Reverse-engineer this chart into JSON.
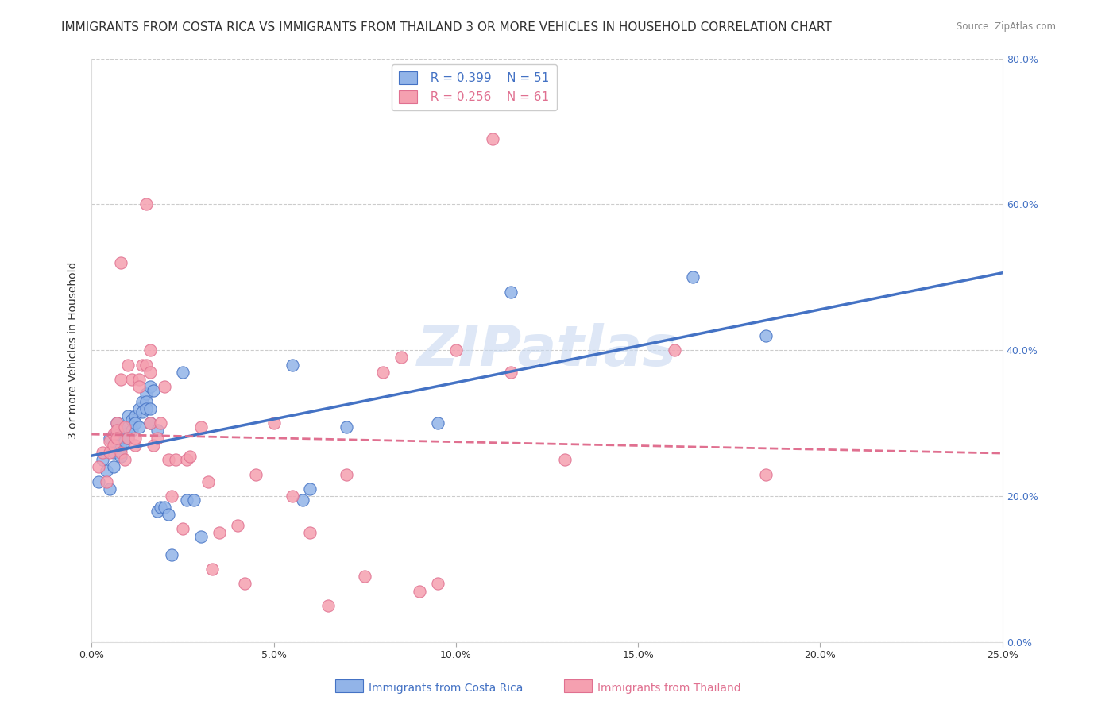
{
  "title": "IMMIGRANTS FROM COSTA RICA VS IMMIGRANTS FROM THAILAND 3 OR MORE VEHICLES IN HOUSEHOLD CORRELATION CHART",
  "source": "Source: ZipAtlas.com",
  "ylabel": "3 or more Vehicles in Household",
  "xlabel_ticks": [
    0.0,
    0.05,
    0.1,
    0.15,
    0.2,
    0.25
  ],
  "xlabel_labels": [
    "0.0%",
    "5.0%",
    "10.0%",
    "15.0%",
    "20.0%",
    "25.0%"
  ],
  "ylabel_ticks": [
    0.0,
    0.2,
    0.4,
    0.6,
    0.8
  ],
  "ylabel_labels": [
    "0.0%",
    "20.0%",
    "40.0%",
    "60.0%",
    "80.0%"
  ],
  "xlim": [
    0.0,
    0.25
  ],
  "ylim": [
    0.0,
    0.8
  ],
  "costa_rica_R": 0.399,
  "costa_rica_N": 51,
  "thailand_R": 0.256,
  "thailand_N": 61,
  "costa_rica_color": "#92b4e8",
  "thailand_color": "#f5a0b0",
  "costa_rica_line_color": "#4472c4",
  "thailand_line_color": "#e07090",
  "watermark": "ZIPatlas",
  "watermark_color": "#c8d8f0",
  "title_fontsize": 11,
  "axis_label_fontsize": 10,
  "tick_fontsize": 9,
  "legend_fontsize": 11,
  "costa_rica_x": [
    0.002,
    0.003,
    0.004,
    0.005,
    0.005,
    0.006,
    0.006,
    0.007,
    0.007,
    0.007,
    0.008,
    0.008,
    0.008,
    0.009,
    0.009,
    0.01,
    0.01,
    0.01,
    0.011,
    0.011,
    0.012,
    0.012,
    0.013,
    0.013,
    0.014,
    0.014,
    0.015,
    0.015,
    0.015,
    0.016,
    0.016,
    0.016,
    0.017,
    0.018,
    0.018,
    0.019,
    0.02,
    0.021,
    0.022,
    0.025,
    0.026,
    0.028,
    0.03,
    0.055,
    0.058,
    0.06,
    0.07,
    0.095,
    0.115,
    0.165,
    0.185
  ],
  "costa_rica_y": [
    0.22,
    0.25,
    0.235,
    0.28,
    0.21,
    0.26,
    0.24,
    0.3,
    0.285,
    0.27,
    0.29,
    0.265,
    0.255,
    0.285,
    0.275,
    0.31,
    0.295,
    0.28,
    0.305,
    0.29,
    0.31,
    0.3,
    0.32,
    0.295,
    0.33,
    0.315,
    0.34,
    0.33,
    0.32,
    0.3,
    0.32,
    0.35,
    0.345,
    0.29,
    0.18,
    0.185,
    0.185,
    0.175,
    0.12,
    0.37,
    0.195,
    0.195,
    0.145,
    0.38,
    0.195,
    0.21,
    0.295,
    0.3,
    0.48,
    0.5,
    0.42
  ],
  "thailand_x": [
    0.002,
    0.003,
    0.004,
    0.005,
    0.005,
    0.006,
    0.006,
    0.007,
    0.007,
    0.007,
    0.008,
    0.008,
    0.008,
    0.009,
    0.009,
    0.01,
    0.01,
    0.011,
    0.012,
    0.012,
    0.013,
    0.013,
    0.014,
    0.015,
    0.015,
    0.016,
    0.016,
    0.016,
    0.017,
    0.018,
    0.019,
    0.02,
    0.021,
    0.022,
    0.023,
    0.025,
    0.026,
    0.027,
    0.03,
    0.032,
    0.033,
    0.035,
    0.04,
    0.042,
    0.045,
    0.05,
    0.055,
    0.06,
    0.065,
    0.07,
    0.075,
    0.08,
    0.085,
    0.09,
    0.095,
    0.1,
    0.11,
    0.115,
    0.13,
    0.16,
    0.185
  ],
  "thailand_y": [
    0.24,
    0.26,
    0.22,
    0.275,
    0.26,
    0.285,
    0.27,
    0.3,
    0.29,
    0.28,
    0.52,
    0.36,
    0.26,
    0.25,
    0.295,
    0.38,
    0.28,
    0.36,
    0.27,
    0.28,
    0.36,
    0.35,
    0.38,
    0.6,
    0.38,
    0.4,
    0.37,
    0.3,
    0.27,
    0.28,
    0.3,
    0.35,
    0.25,
    0.2,
    0.25,
    0.155,
    0.25,
    0.255,
    0.295,
    0.22,
    0.1,
    0.15,
    0.16,
    0.08,
    0.23,
    0.3,
    0.2,
    0.15,
    0.05,
    0.23,
    0.09,
    0.37,
    0.39,
    0.07,
    0.08,
    0.4,
    0.69,
    0.37,
    0.25,
    0.4,
    0.23
  ]
}
